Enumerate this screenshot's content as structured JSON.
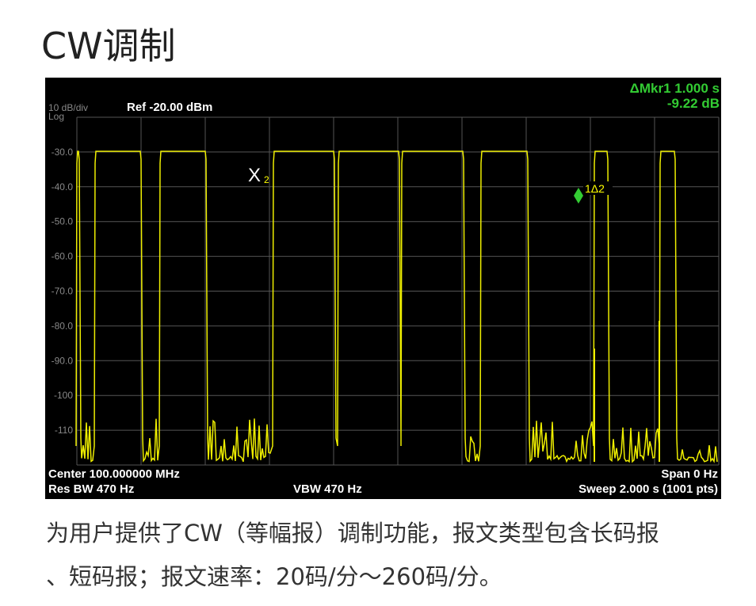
{
  "header": {
    "title": "CW调制"
  },
  "screen": {
    "scale": "10 dB/div",
    "scale_type": "Log",
    "ref": "Ref -20.00 dBm",
    "marker_readout": [
      "ΔMkr1 1.000 s",
      "-9.22 dB"
    ],
    "y_labels": [
      "-30.0",
      "-40.0",
      "-50.0",
      "-60.0",
      "-70.0",
      "-80.0",
      "-90.0",
      "-100",
      "-110"
    ],
    "marker_x": "X",
    "marker_x_sub": "2",
    "marker_delta": "1Δ2",
    "footer": {
      "center": "Center 100.000000 MHz",
      "span": "Span 0 Hz",
      "res_bw": "Res BW 470 Hz",
      "vbw": "VBW 470 Hz",
      "sweep": "Sweep  2.000 s (1001 pts)"
    }
  },
  "caption": [
    "为用户提供了CW（等幅报）调制功能，报文类型包含长码报",
    "、短码报；报文速率：20码/分～260码/分。"
  ]
}
